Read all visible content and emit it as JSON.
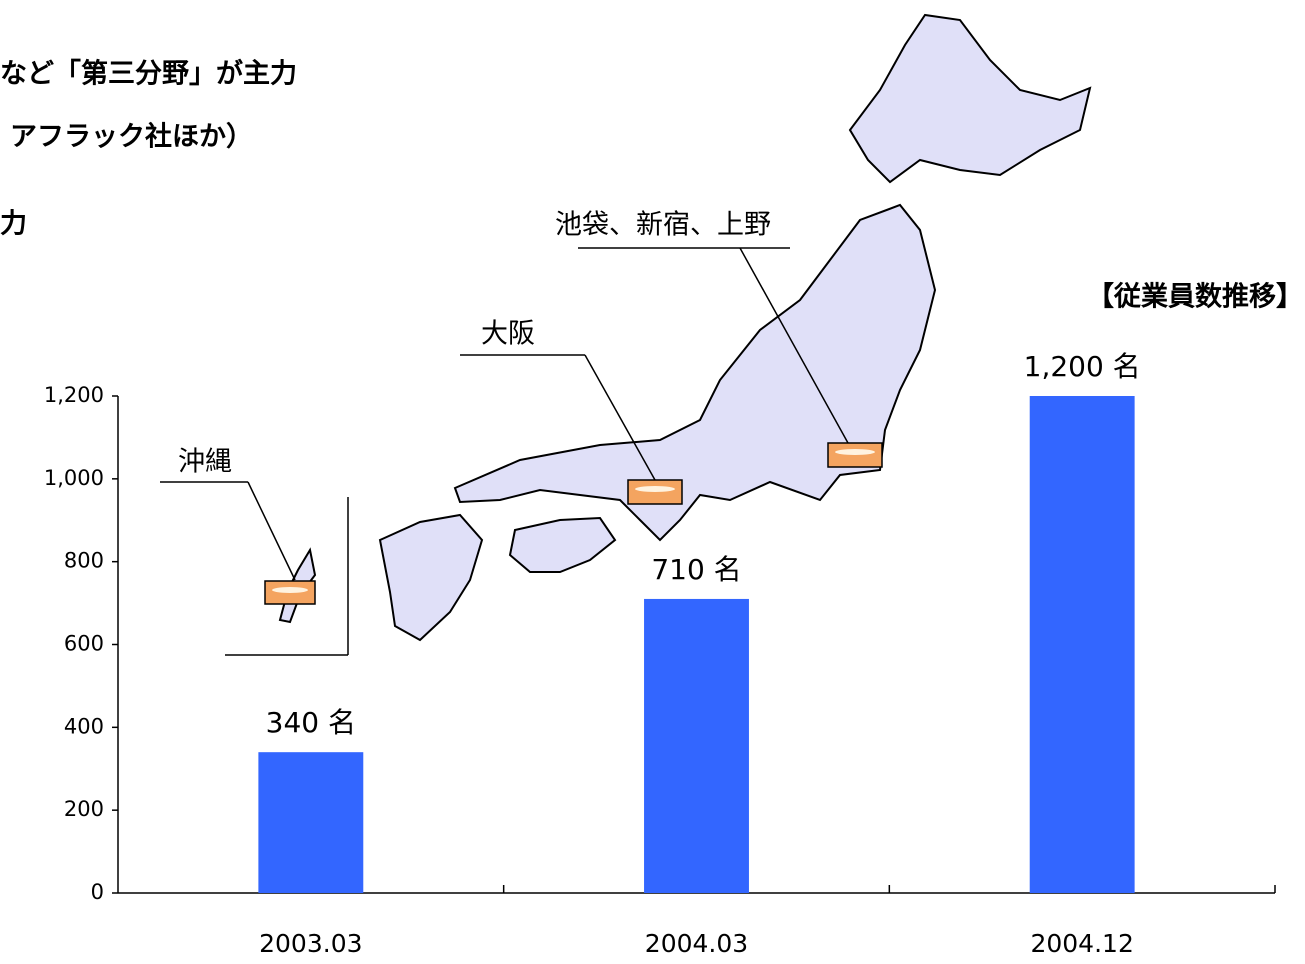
{
  "chart_data": {
    "type": "bar",
    "title": "【従業員数推移】",
    "categories": [
      "2003.03",
      "2004.03",
      "2004.12"
    ],
    "values": [
      340,
      710,
      1200
    ],
    "value_labels": [
      "340 名",
      "710 名",
      "1,200 名"
    ],
    "color": "#3366ff",
    "ylim": [
      0,
      1200
    ],
    "yticks": [
      0,
      200,
      400,
      600,
      800,
      {
        "value": 1000,
        "label": "1,000"
      },
      {
        "value": 1200,
        "label": "1,200"
      }
    ],
    "grid": false
  },
  "notes": [
    "など「第三分野」が主力",
    "アフラック社ほか）",
    "力"
  ],
  "locations": [
    "池袋、新宿、上野",
    "大阪",
    "沖縄"
  ]
}
